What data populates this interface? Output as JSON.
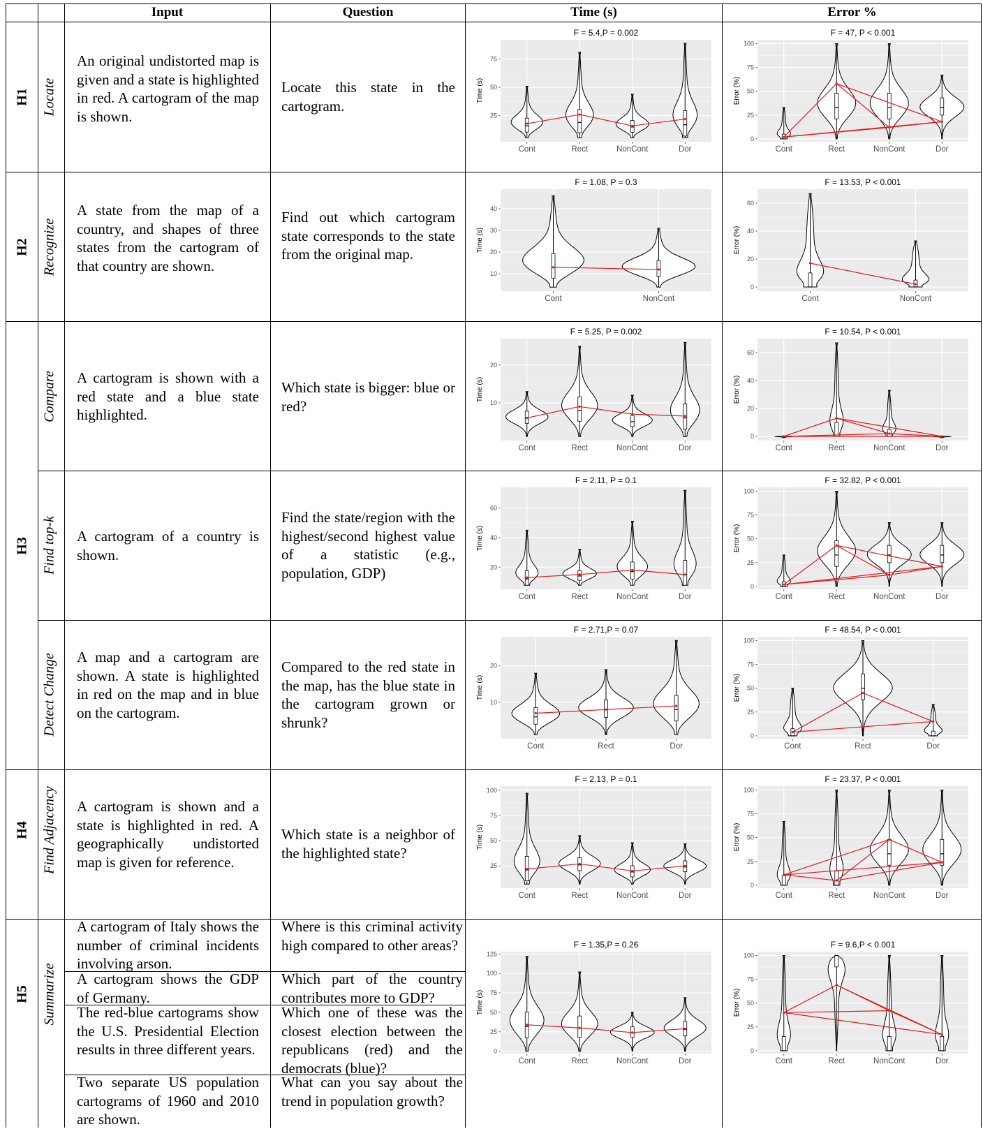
{
  "headers": {
    "input": "Input",
    "question": "Question",
    "time": "Time (s)",
    "error": "Error %"
  },
  "rows": [
    {
      "hyp": "H1",
      "task": "Locate",
      "input": "An original undistorted map is given and a state is highlighted in red. A cartogram of the map is shown.",
      "question": "Locate this state in the cartogram."
    },
    {
      "hyp": "H2",
      "task": "Recognize",
      "input": "A state from the map of a country, and shapes of three states from the cartogram of that country are shown.",
      "question": "Find out which cartogram state corresponds to the state from the original map."
    },
    {
      "hyp": "H3",
      "task": "Compare",
      "input": "A cartogram is shown with a red state and a blue state highlighted.",
      "question": "Which state is bigger: blue or red?"
    },
    {
      "hyp": "",
      "task": "Find top-k",
      "input": "A cartogram of a country is shown.",
      "question": "Find the state/region with the highest/second highest value of a statistic (e.g., population, GDP)"
    },
    {
      "hyp": "",
      "task": "Detect Change",
      "input": "A map and a cartogram are shown. A state is highlighted in red on the map and in blue on the cartogram.",
      "question": "Compared to the red state in the map, has the blue state in the cartogram grown or shrunk?"
    },
    {
      "hyp": "H4",
      "task": "Find Adjacency",
      "input": "A cartogram is shown and a state is highlighted in red. A geographically undistorted map is given for reference.",
      "question": "Which state is a neighbor of the highlighted state?"
    },
    {
      "hyp": "H5",
      "task": "Summarize",
      "sub": [
        {
          "input": "A cartogram of Italy shows the number of criminal incidents involving arson.",
          "question": "Where is this criminal activity high compared to other areas?"
        },
        {
          "input": "A cartogram shows the GDP of Germany.",
          "question": "Which part of the country contributes more to GDP?"
        },
        {
          "input": "The red-blue cartograms show the U.S. Presidential Election results in three different years.",
          "question": "Which one of these was the closest election between the republicans (red) and the democrats (blue)?"
        },
        {
          "input": "Two separate US population cartograms of 1960 and 2010 are shown.",
          "question": "What can you say about the trend in population growth?"
        }
      ]
    }
  ],
  "chart_data": [
    {
      "id": "h1_time",
      "type": "violin",
      "title": "F = 5.4,P = 0.002",
      "ylabel": "Time (s)",
      "categories": [
        "Cont",
        "Rect",
        "NonCont",
        "Dor"
      ],
      "yticks": [
        25,
        50,
        75
      ],
      "ylim": [
        2,
        92
      ],
      "max": [
        51,
        81,
        44,
        89
      ],
      "mean": [
        18,
        26,
        16,
        22
      ],
      "median": [
        16,
        19,
        15,
        17
      ]
    },
    {
      "id": "h1_err",
      "type": "violin",
      "title": "F = 47, P < 0.001",
      "ylabel": "Error (%)",
      "categories": [
        "Cont",
        "Rect",
        "NonCont",
        "Dor"
      ],
      "yticks": [
        0,
        25,
        50,
        75,
        100
      ],
      "ylim": [
        -3,
        104
      ],
      "max": [
        33,
        100,
        100,
        67
      ],
      "mean": [
        2,
        58,
        12,
        18
      ],
      "median": [
        0,
        33,
        33,
        33
      ]
    },
    {
      "id": "h2_time",
      "type": "violin",
      "title": "F = 1.08, P = 0.3",
      "ylabel": "Time (s)",
      "categories": [
        "Cont",
        "NonCont"
      ],
      "yticks": [
        10,
        20,
        30,
        40
      ],
      "ylim": [
        2,
        49
      ],
      "max": [
        46,
        31
      ],
      "mean": [
        13,
        12
      ],
      "median": [
        13,
        12
      ]
    },
    {
      "id": "h2_err",
      "type": "violin",
      "title": "F = 13.53, P < 0.001",
      "ylabel": "Error (%)",
      "categories": [
        "Cont",
        "NonCont"
      ],
      "yticks": [
        0,
        20,
        40,
        60
      ],
      "ylim": [
        -3,
        70
      ],
      "max": [
        67,
        33
      ],
      "mean": [
        17,
        2
      ],
      "median": [
        0,
        0
      ]
    },
    {
      "id": "cmp_time",
      "type": "violin",
      "title": "F = 5.25, P = 0.002",
      "ylabel": "Time (s)",
      "categories": [
        "Cont",
        "Rect",
        "NonCont",
        "Dor"
      ],
      "yticks": [
        10,
        20
      ],
      "ylim": [
        0,
        27
      ],
      "max": [
        13,
        25,
        12,
        26
      ],
      "mean": [
        6,
        9,
        7,
        6.5
      ],
      "median": [
        6,
        8,
        5,
        6
      ]
    },
    {
      "id": "cmp_err",
      "type": "violin",
      "title": "F = 10.54, P < 0.001",
      "ylabel": "Error (%)",
      "categories": [
        "Cont",
        "Rect",
        "NonCont",
        "Dor"
      ],
      "yticks": [
        0,
        20,
        40,
        60
      ],
      "ylim": [
        -3,
        70
      ],
      "max": [
        0,
        67,
        33,
        0
      ],
      "mean": [
        0,
        13,
        2,
        0
      ],
      "median": [
        0,
        0,
        0,
        0
      ]
    },
    {
      "id": "topk_time",
      "type": "violin",
      "title": "F = 2.11, P = 0.1",
      "ylabel": "Time (s)",
      "categories": [
        "Cont",
        "Rect",
        "NonCont",
        "Dor"
      ],
      "yticks": [
        20,
        40,
        60
      ],
      "ylim": [
        5,
        74
      ],
      "max": [
        45,
        32,
        51,
        72
      ],
      "mean": [
        13,
        15,
        18,
        15
      ],
      "median": [
        12,
        14,
        17,
        15
      ]
    },
    {
      "id": "topk_err",
      "type": "violin",
      "title": "F = 32.82, P < 0.001",
      "ylabel": "Error (%)",
      "categories": [
        "Cont",
        "Rect",
        "NonCont",
        "Dor"
      ],
      "yticks": [
        0,
        25,
        50,
        75,
        100
      ],
      "ylim": [
        -3,
        104
      ],
      "max": [
        33,
        100,
        67,
        67
      ],
      "mean": [
        2,
        43,
        12,
        21
      ],
      "median": [
        0,
        33,
        33,
        33
      ]
    },
    {
      "id": "dc_time",
      "type": "violin",
      "title": "F = 2.71,P = 0.07",
      "ylabel": "Time (s)",
      "categories": [
        "Cont",
        "Rect",
        "Dor"
      ],
      "yticks": [
        10,
        20
      ],
      "ylim": [
        0,
        28
      ],
      "max": [
        18,
        19,
        27
      ],
      "mean": [
        7,
        8,
        9
      ],
      "median": [
        6,
        8,
        8
      ]
    },
    {
      "id": "dc_err",
      "type": "violin",
      "title": "F = 48.54, P < 0.001",
      "ylabel": "Error (%)",
      "categories": [
        "Cont",
        "Rect",
        "Dor"
      ],
      "yticks": [
        0,
        25,
        50,
        75,
        100
      ],
      "ylim": [
        -3,
        104
      ],
      "max": [
        50,
        100,
        33
      ],
      "mean": [
        4,
        45,
        15
      ],
      "median": [
        0,
        50,
        0
      ]
    },
    {
      "id": "h4_time",
      "type": "violin",
      "title": "F = 2.13, P = 0.1",
      "ylabel": "Time (s)",
      "categories": [
        "Cont",
        "Rect",
        "NonCont",
        "Dor"
      ],
      "yticks": [
        25,
        50,
        75,
        100
      ],
      "ylim": [
        3,
        104
      ],
      "max": [
        97,
        55,
        48,
        47
      ],
      "mean": [
        22,
        27,
        20,
        25
      ],
      "median": [
        21,
        26,
        19,
        24
      ]
    },
    {
      "id": "h4_err",
      "type": "violin",
      "title": "F = 23.37, P < 0.001",
      "ylabel": "Error (%)",
      "categories": [
        "Cont",
        "Rect",
        "NonCont",
        "Dor"
      ],
      "yticks": [
        0,
        25,
        50,
        75,
        100
      ],
      "ylim": [
        -3,
        104
      ],
      "max": [
        67,
        100,
        100,
        100
      ],
      "mean": [
        11,
        5,
        48,
        24
      ],
      "median": [
        0,
        0,
        33,
        33
      ]
    },
    {
      "id": "h5_time",
      "type": "violin",
      "title": "F = 1.35,P = 0.26",
      "ylabel": "Time (s)",
      "categories": [
        "Cont",
        "Rect",
        "NonCont",
        "Dor"
      ],
      "yticks": [
        0,
        25,
        50,
        75,
        100,
        125
      ],
      "ylim": [
        -3,
        128
      ],
      "max": [
        122,
        102,
        50,
        69
      ],
      "mean": [
        34,
        30,
        24,
        29
      ],
      "median": [
        32,
        30,
        24,
        28
      ]
    },
    {
      "id": "h5_err",
      "type": "violin",
      "title": "F = 9.6,P < 0.001",
      "ylabel": "Error (%)",
      "categories": [
        "Cont",
        "Rect",
        "NonCont",
        "Dor"
      ],
      "yticks": [
        0,
        25,
        50,
        75,
        100
      ],
      "ylim": [
        -3,
        104
      ],
      "max": [
        100,
        100,
        100,
        100
      ],
      "mean": [
        40,
        69,
        42,
        17
      ],
      "median": [
        0,
        100,
        0,
        0
      ]
    }
  ]
}
